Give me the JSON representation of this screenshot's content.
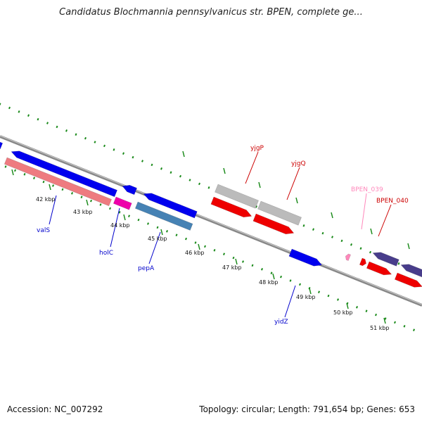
{
  "title": "Candidatus Blochmannia pennsylvanicus str. BPEN, complete ge...",
  "footer": {
    "accession": "Accession: NC_007292",
    "summary": "Topology: circular; Length: 791,654 bp; Genes: 653"
  },
  "colors": {
    "tick_green": "#1a8a1a",
    "gene_blue": "#0000ee",
    "gene_red": "#ee0000",
    "gene_gray": "#bbbbbb",
    "gene_salmon": "#ee7b80",
    "gene_magenta": "#ee00aa",
    "gene_steel": "#4682b4",
    "gene_slate": "#483d8b",
    "gene_pink": "#ff88bb",
    "backbone": "#888888"
  },
  "kbp_labels": [
    "42 kbp",
    "43 kbp",
    "44 kbp",
    "45 kbp",
    "46 kbp",
    "47 kbp",
    "48 kbp",
    "49 kbp",
    "50 kbp",
    "51 kbp"
  ],
  "gene_labels": [
    {
      "name": "valS",
      "color": "#0000cc"
    },
    {
      "name": "holC",
      "color": "#0000cc"
    },
    {
      "name": "pepA",
      "color": "#0000cc"
    },
    {
      "name": "yidZ",
      "color": "#0000cc"
    },
    {
      "name": "yjgP",
      "color": "#cc0000"
    },
    {
      "name": "yjgQ",
      "color": "#cc0000"
    },
    {
      "name": "BPEN_039",
      "color": "#ff88bb"
    },
    {
      "name": "BPEN_040",
      "color": "#cc0000"
    }
  ]
}
